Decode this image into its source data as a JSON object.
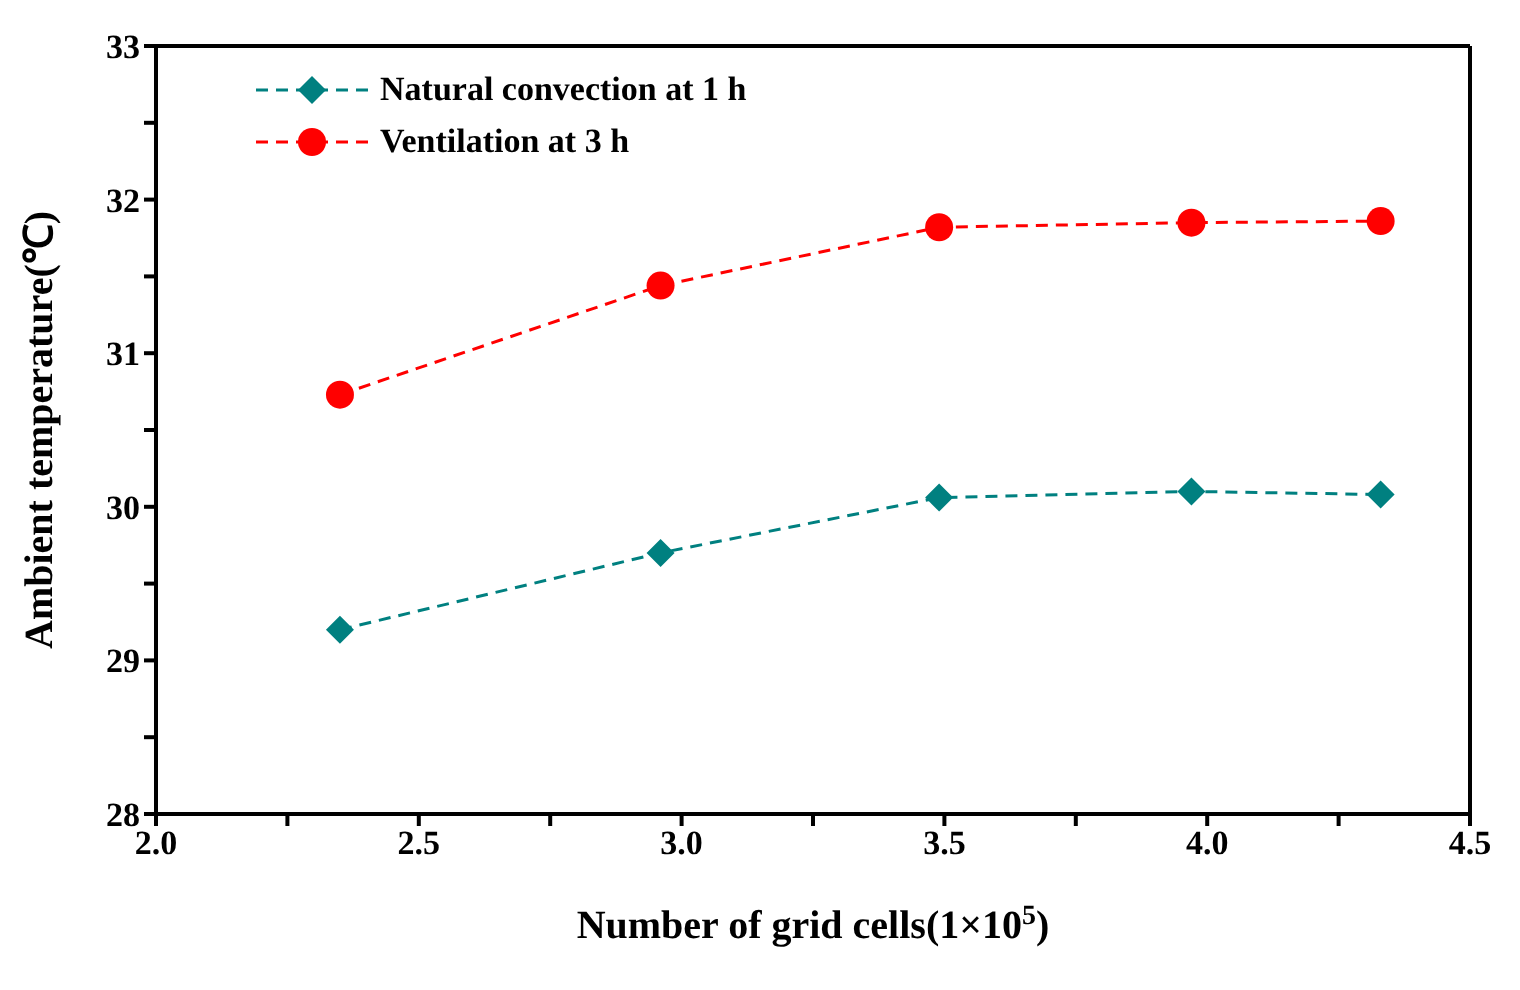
{
  "chart_data": {
    "type": "line",
    "xlabel": "Number of grid cells(1×10$^{5}$)",
    "ylabel": "Ambient temperature(℃)",
    "xlim": [
      2.0,
      4.5
    ],
    "xticks": [
      {
        "value": 2.0,
        "label": "2.0"
      },
      {
        "value": 2.25,
        "label": null
      },
      {
        "value": 2.5,
        "label": "2.5"
      },
      {
        "value": 2.75,
        "label": null
      },
      {
        "value": 3.0,
        "label": "3.0"
      },
      {
        "value": 3.25,
        "label": null
      },
      {
        "value": 3.5,
        "label": "3.5"
      },
      {
        "value": 3.75,
        "label": null
      },
      {
        "value": 4.0,
        "label": "4.0"
      },
      {
        "value": 4.25,
        "label": null
      },
      {
        "value": 4.5,
        "label": "4.5"
      }
    ],
    "ylim": [
      28,
      33
    ],
    "yticks": [
      28,
      {
        "value": 28.5,
        "label": null
      },
      29,
      {
        "value": 29.5,
        "label": null
      },
      30,
      {
        "value": 30.5,
        "label": null
      },
      31,
      {
        "value": 31.5,
        "label": null
      },
      32,
      {
        "value": 32.5,
        "label": null
      },
      33
    ],
    "x": [
      2.35,
      2.96,
      3.49,
      3.97,
      4.33
    ],
    "series": [
      {
        "name": "Natural convection at 1 h",
        "color": "#008080",
        "marker": "diamond",
        "values": [
          29.2,
          29.7,
          30.06,
          30.1,
          30.08
        ]
      },
      {
        "name": "Ventilation at 3 h",
        "color": "#ff0000",
        "marker": "circle",
        "values": [
          30.73,
          31.44,
          31.82,
          31.85,
          31.86
        ]
      }
    ],
    "line_style": "dashed",
    "legend": "top left",
    "grid": false
  }
}
